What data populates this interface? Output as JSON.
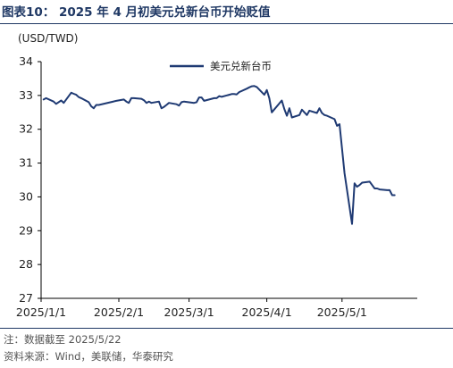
{
  "header": {
    "title": "图表10：  2025 年 4 月初美元兑新台币开始贬值"
  },
  "footer": {
    "note": "注：数据截至 2025/5/22",
    "source": "资料来源：Wind，美联储，华泰研究"
  },
  "colors": {
    "line": "#1f3a73",
    "title": "#1f3864"
  },
  "chart_data": {
    "type": "line",
    "unit_label": "(USD/TWD)",
    "ylim": [
      27,
      34
    ],
    "yticks": [
      27,
      28,
      29,
      30,
      31,
      32,
      33,
      34
    ],
    "xticks": [
      "2025/1/1",
      "2025/2/1",
      "2025/3/1",
      "2025/4/1",
      "2025/5/1"
    ],
    "grid": false,
    "legend": {
      "position": "top-center"
    },
    "series": [
      {
        "name": "美元兑新台币",
        "x": [
          "2025/1/2",
          "2025/1/3",
          "2025/1/6",
          "2025/1/7",
          "2025/1/8",
          "2025/1/9",
          "2025/1/10",
          "2025/1/13",
          "2025/1/14",
          "2025/1/15",
          "2025/1/16",
          "2025/1/17",
          "2025/1/20",
          "2025/1/21",
          "2025/1/22",
          "2025/1/23",
          "2025/1/24",
          "2025/1/31",
          "2025/2/3",
          "2025/2/4",
          "2025/2/5",
          "2025/2/6",
          "2025/2/7",
          "2025/2/10",
          "2025/2/11",
          "2025/2/12",
          "2025/2/13",
          "2025/2/14",
          "2025/2/17",
          "2025/2/18",
          "2025/2/19",
          "2025/2/20",
          "2025/2/21",
          "2025/2/24",
          "2025/2/25",
          "2025/2/26",
          "2025/2/27",
          "2025/3/3",
          "2025/3/4",
          "2025/3/5",
          "2025/3/6",
          "2025/3/7",
          "2025/3/10",
          "2025/3/11",
          "2025/3/12",
          "2025/3/13",
          "2025/3/14",
          "2025/3/17",
          "2025/3/18",
          "2025/3/19",
          "2025/3/20",
          "2025/3/21",
          "2025/3/24",
          "2025/3/25",
          "2025/3/26",
          "2025/3/27",
          "2025/3/28",
          "2025/3/31",
          "2025/4/1",
          "2025/4/2",
          "2025/4/3",
          "2025/4/7",
          "2025/4/8",
          "2025/4/9",
          "2025/4/10",
          "2025/4/11",
          "2025/4/14",
          "2025/4/15",
          "2025/4/16",
          "2025/4/17",
          "2025/4/18",
          "2025/4/21",
          "2025/4/22",
          "2025/4/23",
          "2025/4/24",
          "2025/4/25",
          "2025/4/28",
          "2025/4/29",
          "2025/4/30",
          "2025/5/2",
          "2025/5/5",
          "2025/5/6",
          "2025/5/7",
          "2025/5/8",
          "2025/5/9",
          "2025/5/12",
          "2025/5/13",
          "2025/5/14",
          "2025/5/15",
          "2025/5/16",
          "2025/5/19",
          "2025/5/20",
          "2025/5/21",
          "2025/5/22"
        ],
        "values": [
          32.88,
          32.92,
          32.82,
          32.75,
          32.8,
          32.85,
          32.78,
          33.08,
          33.05,
          33.02,
          32.95,
          32.92,
          32.8,
          32.68,
          32.62,
          32.72,
          32.72,
          32.84,
          32.88,
          32.82,
          32.78,
          32.92,
          32.92,
          32.9,
          32.86,
          32.78,
          32.82,
          32.78,
          32.82,
          32.62,
          32.66,
          32.72,
          32.78,
          32.74,
          32.7,
          32.8,
          32.82,
          32.78,
          32.8,
          32.94,
          32.94,
          32.84,
          32.9,
          32.92,
          32.92,
          32.98,
          32.96,
          33.02,
          33.04,
          33.04,
          33.03,
          33.1,
          33.2,
          33.24,
          33.27,
          33.28,
          33.25,
          33.02,
          33.16,
          32.92,
          32.5,
          32.85,
          32.6,
          32.4,
          32.62,
          32.35,
          32.42,
          32.58,
          32.5,
          32.42,
          32.55,
          32.48,
          32.62,
          32.48,
          32.42,
          32.4,
          32.3,
          32.1,
          32.15,
          30.7,
          29.2,
          30.4,
          30.3,
          30.35,
          30.42,
          30.45,
          30.35,
          30.25,
          30.25,
          30.22,
          30.2,
          30.2,
          30.05,
          30.05
        ]
      }
    ]
  }
}
